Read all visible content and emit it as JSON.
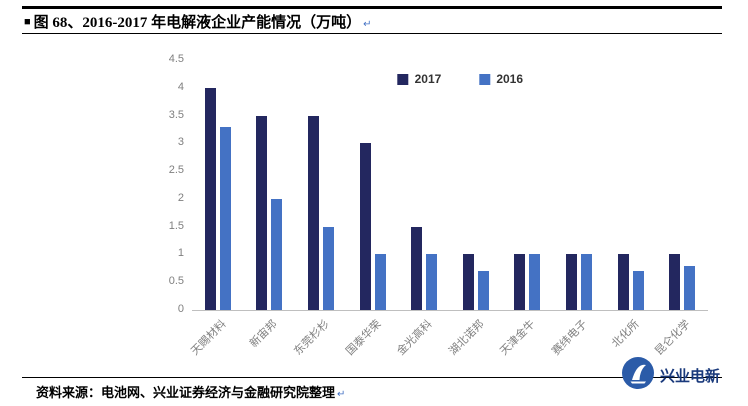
{
  "header": {
    "bullet": "■",
    "title": "图 68、2016-2017 年电解液企业产能情况（万吨）",
    "paragraph_mark": "↵"
  },
  "chart_data": {
    "type": "bar",
    "title": "2016-2017 年电解液企业产能情况（万吨）",
    "categories": [
      "天赐材料",
      "新宙邦",
      "东莞杉杉",
      "国泰华荣",
      "金光高科",
      "湖北诺邦",
      "天津金牛",
      "赛纬电子",
      "北化所",
      "昆仑化学"
    ],
    "series": [
      {
        "name": "2017",
        "color": "#23275F",
        "values": [
          4,
          3.5,
          3.5,
          3,
          1.5,
          1,
          1,
          1,
          1,
          1
        ]
      },
      {
        "name": "2016",
        "color": "#4472C4",
        "values": [
          3.3,
          2,
          1.5,
          1,
          1,
          0.7,
          1,
          1,
          0.7,
          0.8
        ]
      }
    ],
    "xlabel": "",
    "ylabel": "",
    "ylim": [
      0,
      4.5
    ],
    "yticks": [
      0,
      0.5,
      1,
      1.5,
      2,
      2.5,
      3,
      3.5,
      4,
      4.5
    ],
    "grid": false,
    "legend_position": "top-center"
  },
  "footer": {
    "source": "资料来源：电池网、兴业证券经济与金融研究院整理",
    "paragraph_mark": "↵",
    "brand": "兴业电新"
  }
}
